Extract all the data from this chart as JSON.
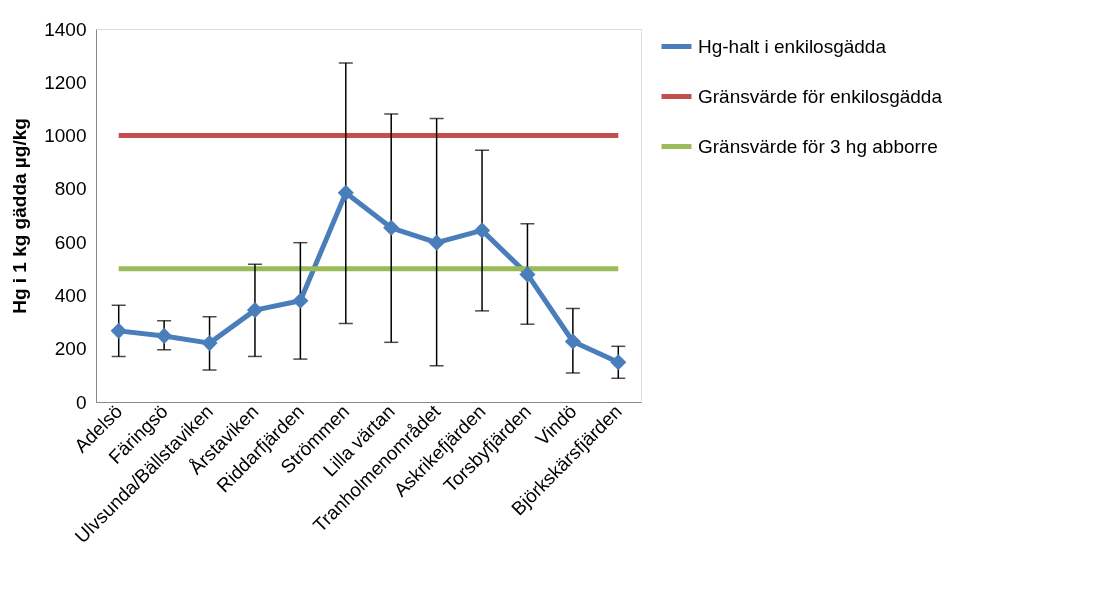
{
  "chart_data": {
    "type": "line",
    "categories": [
      "Adelsö",
      "Färingsö",
      "Ulvsunda/Bällstaviken",
      "Årstaviken",
      "Riddarfjärden",
      "Strömmen",
      "Lilla värtan",
      "Tranholmenområdet",
      "Askrikefjärden",
      "Torsbyfjärden",
      "Vindö",
      "Björkskärsfjärden"
    ],
    "ylabel": "Hg i 1 kg gädda µg/kg",
    "ylim": [
      0,
      1400
    ],
    "yticks": [
      0,
      200,
      400,
      600,
      800,
      1000,
      1200,
      1400
    ],
    "grid": false,
    "legend": "right",
    "series": [
      {
        "name": "Hg-halt i enkilosgädda",
        "color": "#4a7ebb",
        "marker": "diamond",
        "values": [
          267,
          248,
          221,
          345,
          380,
          785,
          654,
          598,
          644,
          479,
          227,
          149
        ],
        "errors": [
          [
            171,
            363
          ],
          [
            196,
            305
          ],
          [
            120,
            320
          ],
          [
            171,
            517
          ],
          [
            161,
            598
          ],
          [
            295,
            1272
          ],
          [
            224,
            1081
          ],
          [
            136,
            1064
          ],
          [
            342,
            945
          ],
          [
            292,
            669
          ],
          [
            109,
            351
          ],
          [
            89,
            209
          ]
        ]
      },
      {
        "name": "Gränsvärde för enkilosgädda",
        "color": "#c0504d",
        "marker": "none",
        "values": [
          1000,
          1000,
          1000,
          1000,
          1000,
          1000,
          1000,
          1000,
          1000,
          1000,
          1000,
          1000
        ]
      },
      {
        "name": "Gränsvärde för 3 hg abborre",
        "color": "#9bbb59",
        "marker": "none",
        "values": [
          500,
          500,
          500,
          500,
          500,
          500,
          500,
          500,
          500,
          500,
          500,
          500
        ]
      }
    ]
  }
}
